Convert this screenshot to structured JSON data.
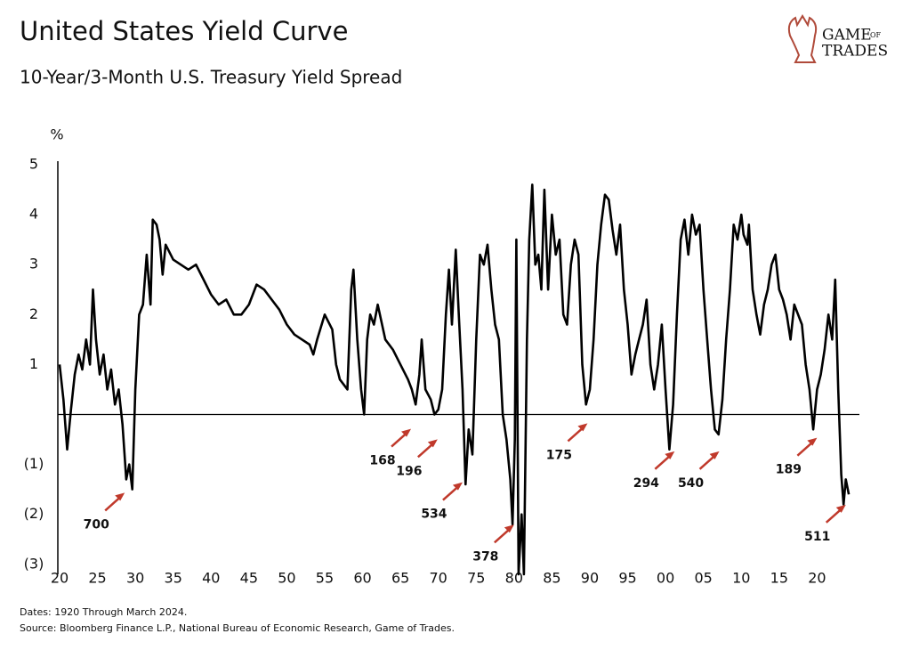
{
  "chart_data": {
    "type": "line",
    "title": "United States Yield Curve",
    "subtitle": "10-Year/3-Month U.S. Treasury Yield Spread",
    "y_label": "%",
    "notes": [
      "Dates: 1920 Through March 2024.",
      "Source: Bloomberg Finance L.P., National Bureau of Economic Research, Game of Trades."
    ],
    "logo": {
      "line1": "GAME",
      "small": "OF",
      "line2": "TRADES"
    },
    "color": "#000000",
    "annotation_color": "#c0392b",
    "xlim": [
      1920,
      2024.3
    ],
    "ylim": [
      -3.2,
      5
    ],
    "yticks": [
      5,
      4,
      3,
      2,
      1,
      {
        "value": -1,
        "label": "(1)"
      },
      {
        "value": -2,
        "label": "(2)"
      },
      {
        "value": -3,
        "label": "(3)"
      }
    ],
    "xticks": [
      {
        "value": 1920,
        "label": "20"
      },
      {
        "value": 1925,
        "label": "25"
      },
      {
        "value": 1930,
        "label": "30"
      },
      {
        "value": 1935,
        "label": "35"
      },
      {
        "value": 1940,
        "label": "40"
      },
      {
        "value": 1945,
        "label": "45"
      },
      {
        "value": 1950,
        "label": "50"
      },
      {
        "value": 1955,
        "label": "55"
      },
      {
        "value": 1960,
        "label": "60"
      },
      {
        "value": 1965,
        "label": "65"
      },
      {
        "value": 1970,
        "label": "70"
      },
      {
        "value": 1975,
        "label": "75"
      },
      {
        "value": 1980,
        "label": "80"
      },
      {
        "value": 1985,
        "label": "85"
      },
      {
        "value": 1990,
        "label": "90"
      },
      {
        "value": 1995,
        "label": "95"
      },
      {
        "value": 2000,
        "label": "00"
      },
      {
        "value": 2005,
        "label": "05"
      },
      {
        "value": 2010,
        "label": "10"
      },
      {
        "value": 2015,
        "label": "15"
      },
      {
        "value": 2020,
        "label": "20"
      }
    ],
    "x": [
      1920,
      1920.5,
      1921,
      1921.5,
      1922,
      1922.5,
      1923,
      1923.5,
      1924,
      1924.4,
      1924.8,
      1925.3,
      1925.8,
      1926.3,
      1926.8,
      1927.3,
      1927.8,
      1928.3,
      1928.8,
      1929.2,
      1929.6,
      1930,
      1930.5,
      1931,
      1931.5,
      1932,
      1932.3,
      1932.8,
      1933.2,
      1933.6,
      1934,
      1935,
      1936,
      1937,
      1938,
      1939,
      1940,
      1941,
      1942,
      1943,
      1944,
      1945,
      1946,
      1947,
      1948,
      1949,
      1950,
      1951,
      1952,
      1953,
      1953.5,
      1954,
      1955,
      1956,
      1956.5,
      1957,
      1957.5,
      1958,
      1958.5,
      1958.8,
      1959.3,
      1959.8,
      1960.2,
      1960.6,
      1961,
      1961.5,
      1962,
      1963,
      1964,
      1965,
      1966,
      1966.5,
      1967,
      1967.5,
      1967.8,
      1968.3,
      1969,
      1969.5,
      1970,
      1970.5,
      1971,
      1971.4,
      1971.8,
      1972.3,
      1972.7,
      1973.2,
      1973.6,
      1974,
      1974.5,
      1975,
      1975.5,
      1976,
      1976.5,
      1977,
      1977.5,
      1978,
      1978.5,
      1979,
      1979.5,
      1979.8,
      1980.1,
      1980.3,
      1980.6,
      1981,
      1981.3,
      1981.7,
      1982,
      1982.4,
      1982.8,
      1983.2,
      1983.6,
      1984,
      1984.5,
      1985,
      1985.5,
      1986,
      1986.5,
      1987,
      1987.5,
      1988,
      1988.5,
      1989,
      1989.5,
      1990,
      1990.5,
      1991,
      1991.5,
      1992,
      1992.5,
      1993,
      1993.5,
      1994,
      1994.5,
      1995,
      1995.5,
      1996,
      1996.5,
      1997,
      1997.5,
      1998,
      1998.5,
      1999,
      1999.5,
      2000,
      2000.5,
      2001,
      2001.5,
      2002,
      2002.5,
      2003,
      2003.5,
      2004,
      2004.5,
      2005,
      2005.5,
      2006,
      2006.5,
      2007,
      2007.5,
      2008,
      2008.5,
      2009,
      2009.5,
      2010,
      2010.3,
      2010.8,
      2011,
      2011.5,
      2012,
      2012.5,
      2013,
      2013.5,
      2014,
      2014.5,
      2015,
      2015.5,
      2016,
      2016.5,
      2017,
      2017.5,
      2018,
      2018.5,
      2019,
      2019.5,
      2020,
      2020.5,
      2021,
      2021.5,
      2022,
      2022.4,
      2022.8,
      2023.2,
      2023.5,
      2023.8,
      2024.2
    ],
    "values": [
      1.0,
      0.3,
      -0.7,
      0.1,
      0.8,
      1.2,
      0.9,
      1.5,
      1.0,
      2.5,
      1.5,
      0.8,
      1.2,
      0.5,
      0.9,
      0.2,
      0.5,
      -0.2,
      -1.3,
      -1.0,
      -1.5,
      0.5,
      2.0,
      2.2,
      3.2,
      2.2,
      3.9,
      3.8,
      3.5,
      2.8,
      3.4,
      3.1,
      3.0,
      2.9,
      3.0,
      2.7,
      2.4,
      2.2,
      2.3,
      2.0,
      2.0,
      2.2,
      2.6,
      2.5,
      2.3,
      2.1,
      1.8,
      1.6,
      1.5,
      1.4,
      1.2,
      1.5,
      2.0,
      1.7,
      1.0,
      0.7,
      0.6,
      0.5,
      2.5,
      2.9,
      1.5,
      0.5,
      0.0,
      1.5,
      2.0,
      1.8,
      2.2,
      1.5,
      1.3,
      1.0,
      0.7,
      0.5,
      0.2,
      0.8,
      1.5,
      0.5,
      0.3,
      0.0,
      0.1,
      0.5,
      2.0,
      2.9,
      1.8,
      3.3,
      2.0,
      0.5,
      -1.4,
      -0.3,
      -0.8,
      1.5,
      3.2,
      3.0,
      3.4,
      2.5,
      1.8,
      1.5,
      0.0,
      -0.5,
      -1.3,
      -2.2,
      -0.5,
      3.5,
      -3.2,
      -2.0,
      -3.2,
      1.5,
      3.5,
      4.6,
      3.0,
      3.2,
      2.5,
      4.5,
      2.5,
      4.0,
      3.2,
      3.5,
      2.0,
      1.8,
      3.0,
      3.5,
      3.2,
      1.0,
      0.2,
      0.5,
      1.5,
      3.0,
      3.8,
      4.4,
      4.3,
      3.7,
      3.2,
      3.8,
      2.5,
      1.8,
      0.8,
      1.2,
      1.5,
      1.8,
      2.3,
      1.0,
      0.5,
      1.0,
      1.8,
      0.5,
      -0.7,
      0.2,
      2.0,
      3.5,
      3.9,
      3.2,
      4.0,
      3.6,
      3.8,
      2.5,
      1.5,
      0.5,
      -0.3,
      -0.4,
      0.3,
      1.5,
      2.5,
      3.8,
      3.5,
      4.0,
      3.6,
      3.4,
      3.8,
      2.5,
      2.0,
      1.6,
      2.2,
      2.5,
      3.0,
      3.2,
      2.5,
      2.3,
      2.0,
      1.5,
      2.2,
      2.0,
      1.8,
      1.0,
      0.5,
      -0.3,
      0.5,
      0.8,
      1.3,
      2.0,
      1.5,
      2.7,
      0.5,
      -1.2,
      -1.8,
      -1.3,
      -1.6
    ],
    "annotations": [
      {
        "label": "700",
        "x": 1928.6,
        "y": -1.46
      },
      {
        "label": "168",
        "x": 1966.4,
        "y": -0.18
      },
      {
        "label": "196",
        "x": 1969.9,
        "y": -0.39
      },
      {
        "label": "534",
        "x": 1973.2,
        "y": -1.25
      },
      {
        "label": "378",
        "x": 1980.0,
        "y": -2.1
      },
      {
        "label": "175",
        "x": 1989.7,
        "y": -0.07
      },
      {
        "label": "294",
        "x": 2001.2,
        "y": -0.63
      },
      {
        "label": "540",
        "x": 2007.1,
        "y": -0.63
      },
      {
        "label": "189",
        "x": 2020.0,
        "y": -0.36
      },
      {
        "label": "511",
        "x": 2023.8,
        "y": -1.7
      }
    ]
  }
}
